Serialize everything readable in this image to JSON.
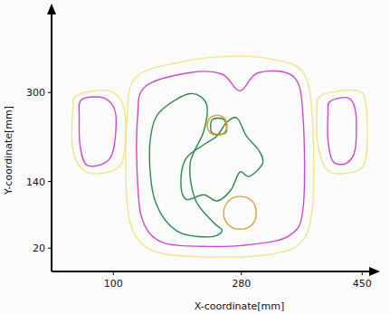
{
  "chart_data": {
    "type": "contour",
    "x_label": "X-coordinate[mm]",
    "y_label": "Y-coordinate[mm]",
    "xlim": [
      13,
      465
    ],
    "ylim": [
      -22,
      447
    ],
    "xticks": [
      100,
      280,
      450
    ],
    "yticks": [
      20,
      140,
      300
    ],
    "series": [
      {
        "color": "#f2e48a",
        "x": [
          49,
          94,
          115,
          115,
          100,
          62,
          43,
          43
        ],
        "y": [
          295,
          303,
          271,
          189,
          160,
          157,
          197,
          271
        ]
      },
      {
        "color": "#d048c8",
        "x": [
          55,
          87,
          103,
          100,
          87,
          62,
          53,
          52
        ],
        "y": [
          287,
          290,
          263,
          197,
          173,
          170,
          206,
          254
        ]
      },
      {
        "color": "#f2e48a",
        "x": [
          393,
          444,
          456,
          456,
          444,
          405,
          389,
          386
        ],
        "y": [
          295,
          303,
          271,
          189,
          160,
          157,
          197,
          263
        ]
      },
      {
        "color": "#d048c8",
        "x": [
          405,
          431,
          441,
          440,
          428,
          409,
          402,
          402
        ],
        "y": [
          284,
          290,
          263,
          197,
          173,
          176,
          214,
          263
        ]
      },
      {
        "color": "#f2e48a",
        "x": [
          132,
          195,
          259,
          323,
          367,
          380,
          380,
          361,
          310,
          246,
          170,
          132,
          119,
          119
        ],
        "y": [
          328,
          355,
          365,
          360,
          336,
          254,
          92,
          27,
          7,
          4,
          10,
          40,
          108,
          254
        ]
      },
      {
        "color": "#d048c8",
        "x": [
          145,
          208,
          253,
          278,
          304,
          354,
          367,
          367,
          348,
          297,
          234,
          170,
          142,
          134,
          134
        ],
        "y": [
          311,
          336,
          333,
          303,
          336,
          328,
          254,
          92,
          43,
          27,
          23,
          30,
          67,
          140,
          254
        ]
      },
      {
        "color": "#2a8a4a",
        "x": [
          170,
          208,
          231,
          227,
          208,
          215,
          240,
          253,
          234,
          189,
          160,
          151,
          155
        ],
        "y": [
          271,
          298,
          279,
          230,
          173,
          108,
          67,
          51,
          40,
          51,
          100,
          173,
          238
        ]
      },
      {
        "color": "#2a8a4a",
        "x": [
          202,
          227,
          246,
          259,
          274,
          287,
          304,
          310,
          291,
          278,
          265,
          246,
          227,
          202,
          195
        ],
        "y": [
          181,
          206,
          222,
          246,
          254,
          222,
          197,
          173,
          149,
          157,
          124,
          105,
          116,
          108,
          140
        ]
      },
      {
        "color": "#2a8a4a",
        "x": [
          239,
          256,
          258,
          239
        ],
        "y": [
          251,
          251,
          228,
          227
        ]
      },
      {
        "color": "#e0a030",
        "x": [
          246,
          256,
          260,
          256,
          246,
          236,
          232,
          236
        ],
        "y": [
          259,
          254,
          241,
          228,
          223,
          228,
          241,
          254
        ]
      },
      {
        "color": "#e0a030",
        "x": [
          278,
          295,
          301,
          295,
          278,
          262,
          255,
          262
        ],
        "y": [
          113,
          105,
          83,
          62,
          54,
          62,
          83,
          105
        ]
      }
    ]
  }
}
